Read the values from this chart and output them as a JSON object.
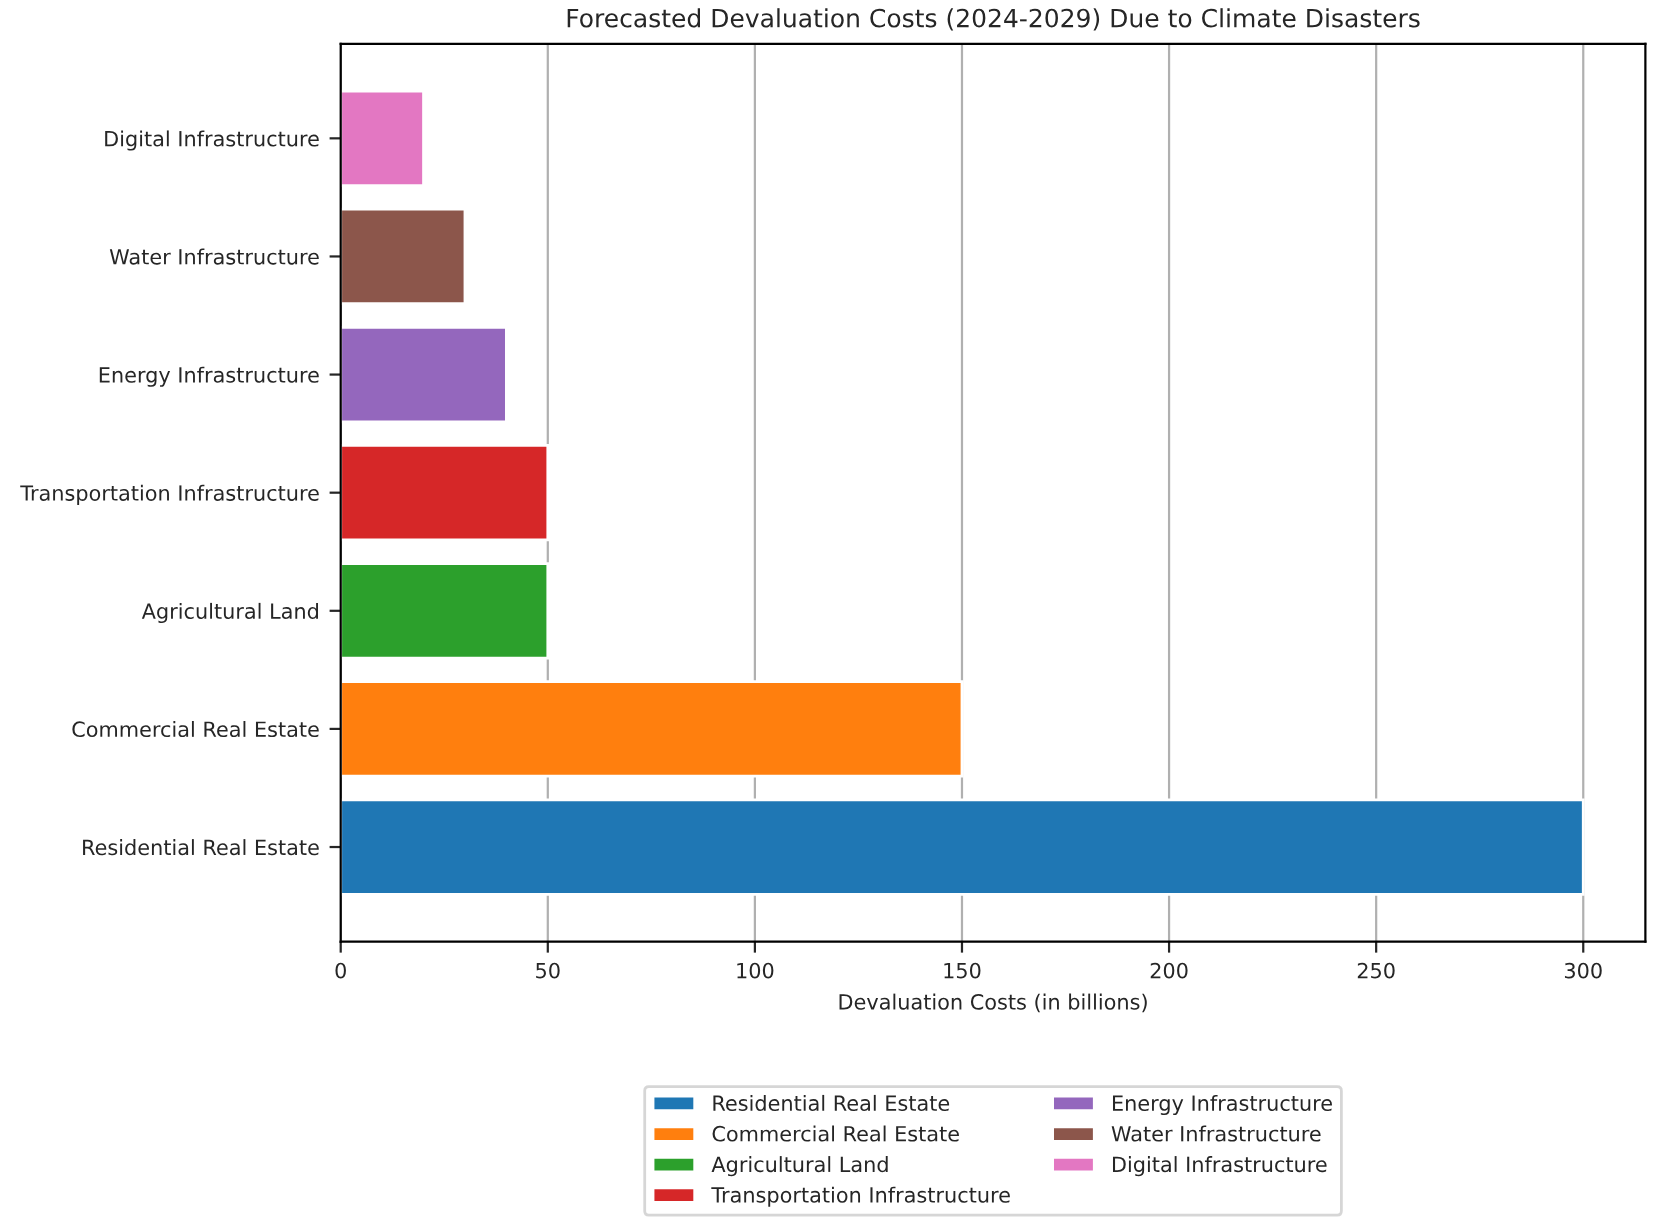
{
  "chart_data": {
    "type": "bar",
    "orientation": "horizontal",
    "title": "Forecasted Devaluation Costs (2024-2029) Due to Climate Disasters",
    "xlabel": "Devaluation Costs (in billions)",
    "categories": [
      "Digital Infrastructure",
      "Water Infrastructure",
      "Energy Infrastructure",
      "Transportation Infrastructure",
      "Agricultural Land",
      "Commercial Real Estate",
      "Residential Real Estate"
    ],
    "series": [
      {
        "name": "Residential Real Estate",
        "color": "#1f77b4",
        "values": [
          null,
          null,
          null,
          null,
          null,
          null,
          300
        ]
      },
      {
        "name": "Commercial Real Estate",
        "color": "#ff7f0e",
        "values": [
          null,
          null,
          null,
          null,
          null,
          150,
          null
        ]
      },
      {
        "name": "Agricultural Land",
        "color": "#2ca02c",
        "values": [
          null,
          null,
          null,
          null,
          50,
          null,
          null
        ]
      },
      {
        "name": "Transportation Infrastructure",
        "color": "#d62728",
        "values": [
          null,
          null,
          null,
          50,
          null,
          null,
          null
        ]
      },
      {
        "name": "Energy Infrastructure",
        "color": "#9467bd",
        "values": [
          null,
          null,
          40,
          null,
          null,
          null,
          null
        ]
      },
      {
        "name": "Water Infrastructure",
        "color": "#8c564b",
        "values": [
          null,
          30,
          null,
          null,
          null,
          null,
          null
        ]
      },
      {
        "name": "Digital Infrastructure",
        "color": "#e377c2",
        "values": [
          20,
          null,
          null,
          null,
          null,
          null,
          null
        ]
      }
    ],
    "xlim": [
      0,
      315
    ],
    "xticks": [
      0,
      50,
      100,
      150,
      200,
      250,
      300
    ],
    "grid": "x",
    "legend": "bottom"
  }
}
